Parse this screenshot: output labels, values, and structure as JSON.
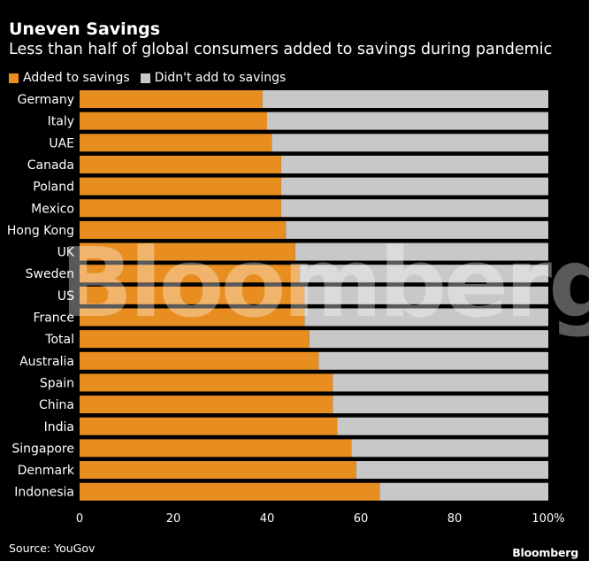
{
  "header": {
    "title": "Uneven Savings",
    "subtitle": "Less than half of global consumers added to savings during pandemic"
  },
  "footer": {
    "source": "Source: YouGov",
    "brand": "Bloomberg"
  },
  "watermark": "Bloomberg",
  "colors": {
    "added": "#e88d1f",
    "not_added": "#c8c8c8",
    "background": "#000000"
  },
  "chart_data": {
    "type": "bar",
    "orientation": "horizontal",
    "stacked": true,
    "categories": [
      "Germany",
      "Italy",
      "UAE",
      "Canada",
      "Poland",
      "Mexico",
      "Hong Kong",
      "UK",
      "Sweden",
      "US",
      "France",
      "Total",
      "Australia",
      "Spain",
      "China",
      "India",
      "Singapore",
      "Denmark",
      "Indonesia"
    ],
    "series": [
      {
        "name": "Added to savings",
        "values": [
          39,
          40,
          41,
          43,
          43,
          43,
          44,
          46,
          47,
          48,
          48,
          49,
          51,
          54,
          54,
          55,
          58,
          59,
          64
        ]
      },
      {
        "name": "Didn't add to savings",
        "values": [
          61,
          60,
          59,
          57,
          57,
          57,
          56,
          54,
          53,
          52,
          52,
          51,
          49,
          46,
          46,
          45,
          42,
          41,
          36
        ]
      }
    ],
    "xlim": [
      0,
      100
    ],
    "xticks": [
      "0",
      "20",
      "40",
      "60",
      "80",
      "100%"
    ],
    "xtick_values": [
      0,
      20,
      40,
      60,
      80,
      100
    ],
    "legend_position": "top-left",
    "grid": false
  }
}
